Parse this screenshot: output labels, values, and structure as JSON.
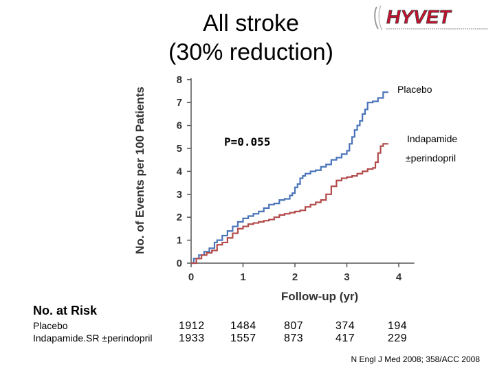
{
  "title_line1": "All stroke",
  "title_line2": "(30% reduction)",
  "logo_text": "HYVET",
  "colors": {
    "placebo": "#4a74b8",
    "indapamide": "#b24a4a",
    "brand_red": "#c8102e"
  },
  "chart_data": {
    "type": "line",
    "ylabel": "No. of Events per 100 Patients",
    "xlabel": "Follow-up (yr)",
    "xlim": [
      0,
      4.3
    ],
    "ylim": [
      0,
      8
    ],
    "xticks": [
      "0",
      "1",
      "2",
      "3",
      "4"
    ],
    "yticks": [
      "0",
      "1",
      "2",
      "3",
      "4",
      "5",
      "6",
      "7",
      "8"
    ],
    "grid": false,
    "annotation": "P=0.055",
    "series": [
      {
        "name": "Placebo",
        "points": [
          [
            0,
            0
          ],
          [
            0.05,
            0.2
          ],
          [
            0.15,
            0.35
          ],
          [
            0.25,
            0.5
          ],
          [
            0.35,
            0.65
          ],
          [
            0.45,
            0.9
          ],
          [
            0.5,
            1.0
          ],
          [
            0.6,
            1.2
          ],
          [
            0.7,
            1.4
          ],
          [
            0.8,
            1.6
          ],
          [
            0.9,
            1.8
          ],
          [
            1.0,
            1.95
          ],
          [
            1.1,
            2.05
          ],
          [
            1.2,
            2.15
          ],
          [
            1.3,
            2.25
          ],
          [
            1.4,
            2.4
          ],
          [
            1.5,
            2.55
          ],
          [
            1.6,
            2.6
          ],
          [
            1.7,
            2.75
          ],
          [
            1.8,
            2.8
          ],
          [
            1.9,
            2.95
          ],
          [
            1.95,
            3.05
          ],
          [
            2.0,
            3.3
          ],
          [
            2.05,
            3.45
          ],
          [
            2.1,
            3.7
          ],
          [
            2.15,
            3.8
          ],
          [
            2.2,
            3.9
          ],
          [
            2.3,
            4.0
          ],
          [
            2.4,
            4.05
          ],
          [
            2.5,
            4.2
          ],
          [
            2.6,
            4.3
          ],
          [
            2.7,
            4.5
          ],
          [
            2.8,
            4.6
          ],
          [
            2.9,
            4.75
          ],
          [
            3.0,
            4.9
          ],
          [
            3.05,
            5.2
          ],
          [
            3.1,
            5.5
          ],
          [
            3.15,
            5.8
          ],
          [
            3.2,
            6.0
          ],
          [
            3.25,
            6.2
          ],
          [
            3.3,
            6.5
          ],
          [
            3.35,
            6.7
          ],
          [
            3.4,
            7.0
          ],
          [
            3.5,
            7.05
          ],
          [
            3.6,
            7.2
          ],
          [
            3.7,
            7.45
          ],
          [
            3.8,
            7.45
          ]
        ]
      },
      {
        "name": "Indapamide ±perindopril",
        "points": [
          [
            0,
            0
          ],
          [
            0.1,
            0.2
          ],
          [
            0.2,
            0.35
          ],
          [
            0.3,
            0.45
          ],
          [
            0.4,
            0.55
          ],
          [
            0.5,
            0.8
          ],
          [
            0.6,
            0.9
          ],
          [
            0.7,
            1.1
          ],
          [
            0.8,
            1.3
          ],
          [
            0.9,
            1.5
          ],
          [
            1.0,
            1.6
          ],
          [
            1.1,
            1.7
          ],
          [
            1.2,
            1.75
          ],
          [
            1.3,
            1.8
          ],
          [
            1.4,
            1.85
          ],
          [
            1.5,
            1.9
          ],
          [
            1.6,
            2.0
          ],
          [
            1.7,
            2.1
          ],
          [
            1.8,
            2.15
          ],
          [
            1.9,
            2.2
          ],
          [
            2.0,
            2.25
          ],
          [
            2.1,
            2.3
          ],
          [
            2.2,
            2.45
          ],
          [
            2.3,
            2.55
          ],
          [
            2.4,
            2.65
          ],
          [
            2.5,
            2.75
          ],
          [
            2.6,
            3.0
          ],
          [
            2.7,
            3.35
          ],
          [
            2.8,
            3.6
          ],
          [
            2.9,
            3.7
          ],
          [
            3.0,
            3.75
          ],
          [
            3.1,
            3.8
          ],
          [
            3.2,
            3.9
          ],
          [
            3.3,
            4.0
          ],
          [
            3.4,
            4.1
          ],
          [
            3.5,
            4.15
          ],
          [
            3.55,
            4.4
          ],
          [
            3.6,
            4.8
          ],
          [
            3.65,
            5.1
          ],
          [
            3.7,
            5.2
          ],
          [
            3.8,
            5.2
          ]
        ]
      }
    ]
  },
  "series_labels": {
    "placebo": "Placebo",
    "indapamide_line1": "Indapamide",
    "indapamide_line2": "±perindopril"
  },
  "risk_table": {
    "heading": "No. at Risk",
    "rows": [
      {
        "label": "Placebo",
        "values": [
          "1912",
          "1484",
          "807",
          "374",
          "194"
        ]
      },
      {
        "label": "Indapamide.SR ±perindopril",
        "values": [
          "1933",
          "1557",
          "873",
          "417",
          "229"
        ]
      }
    ]
  },
  "source": "N Engl J Med 2008; 358/ACC 2008"
}
